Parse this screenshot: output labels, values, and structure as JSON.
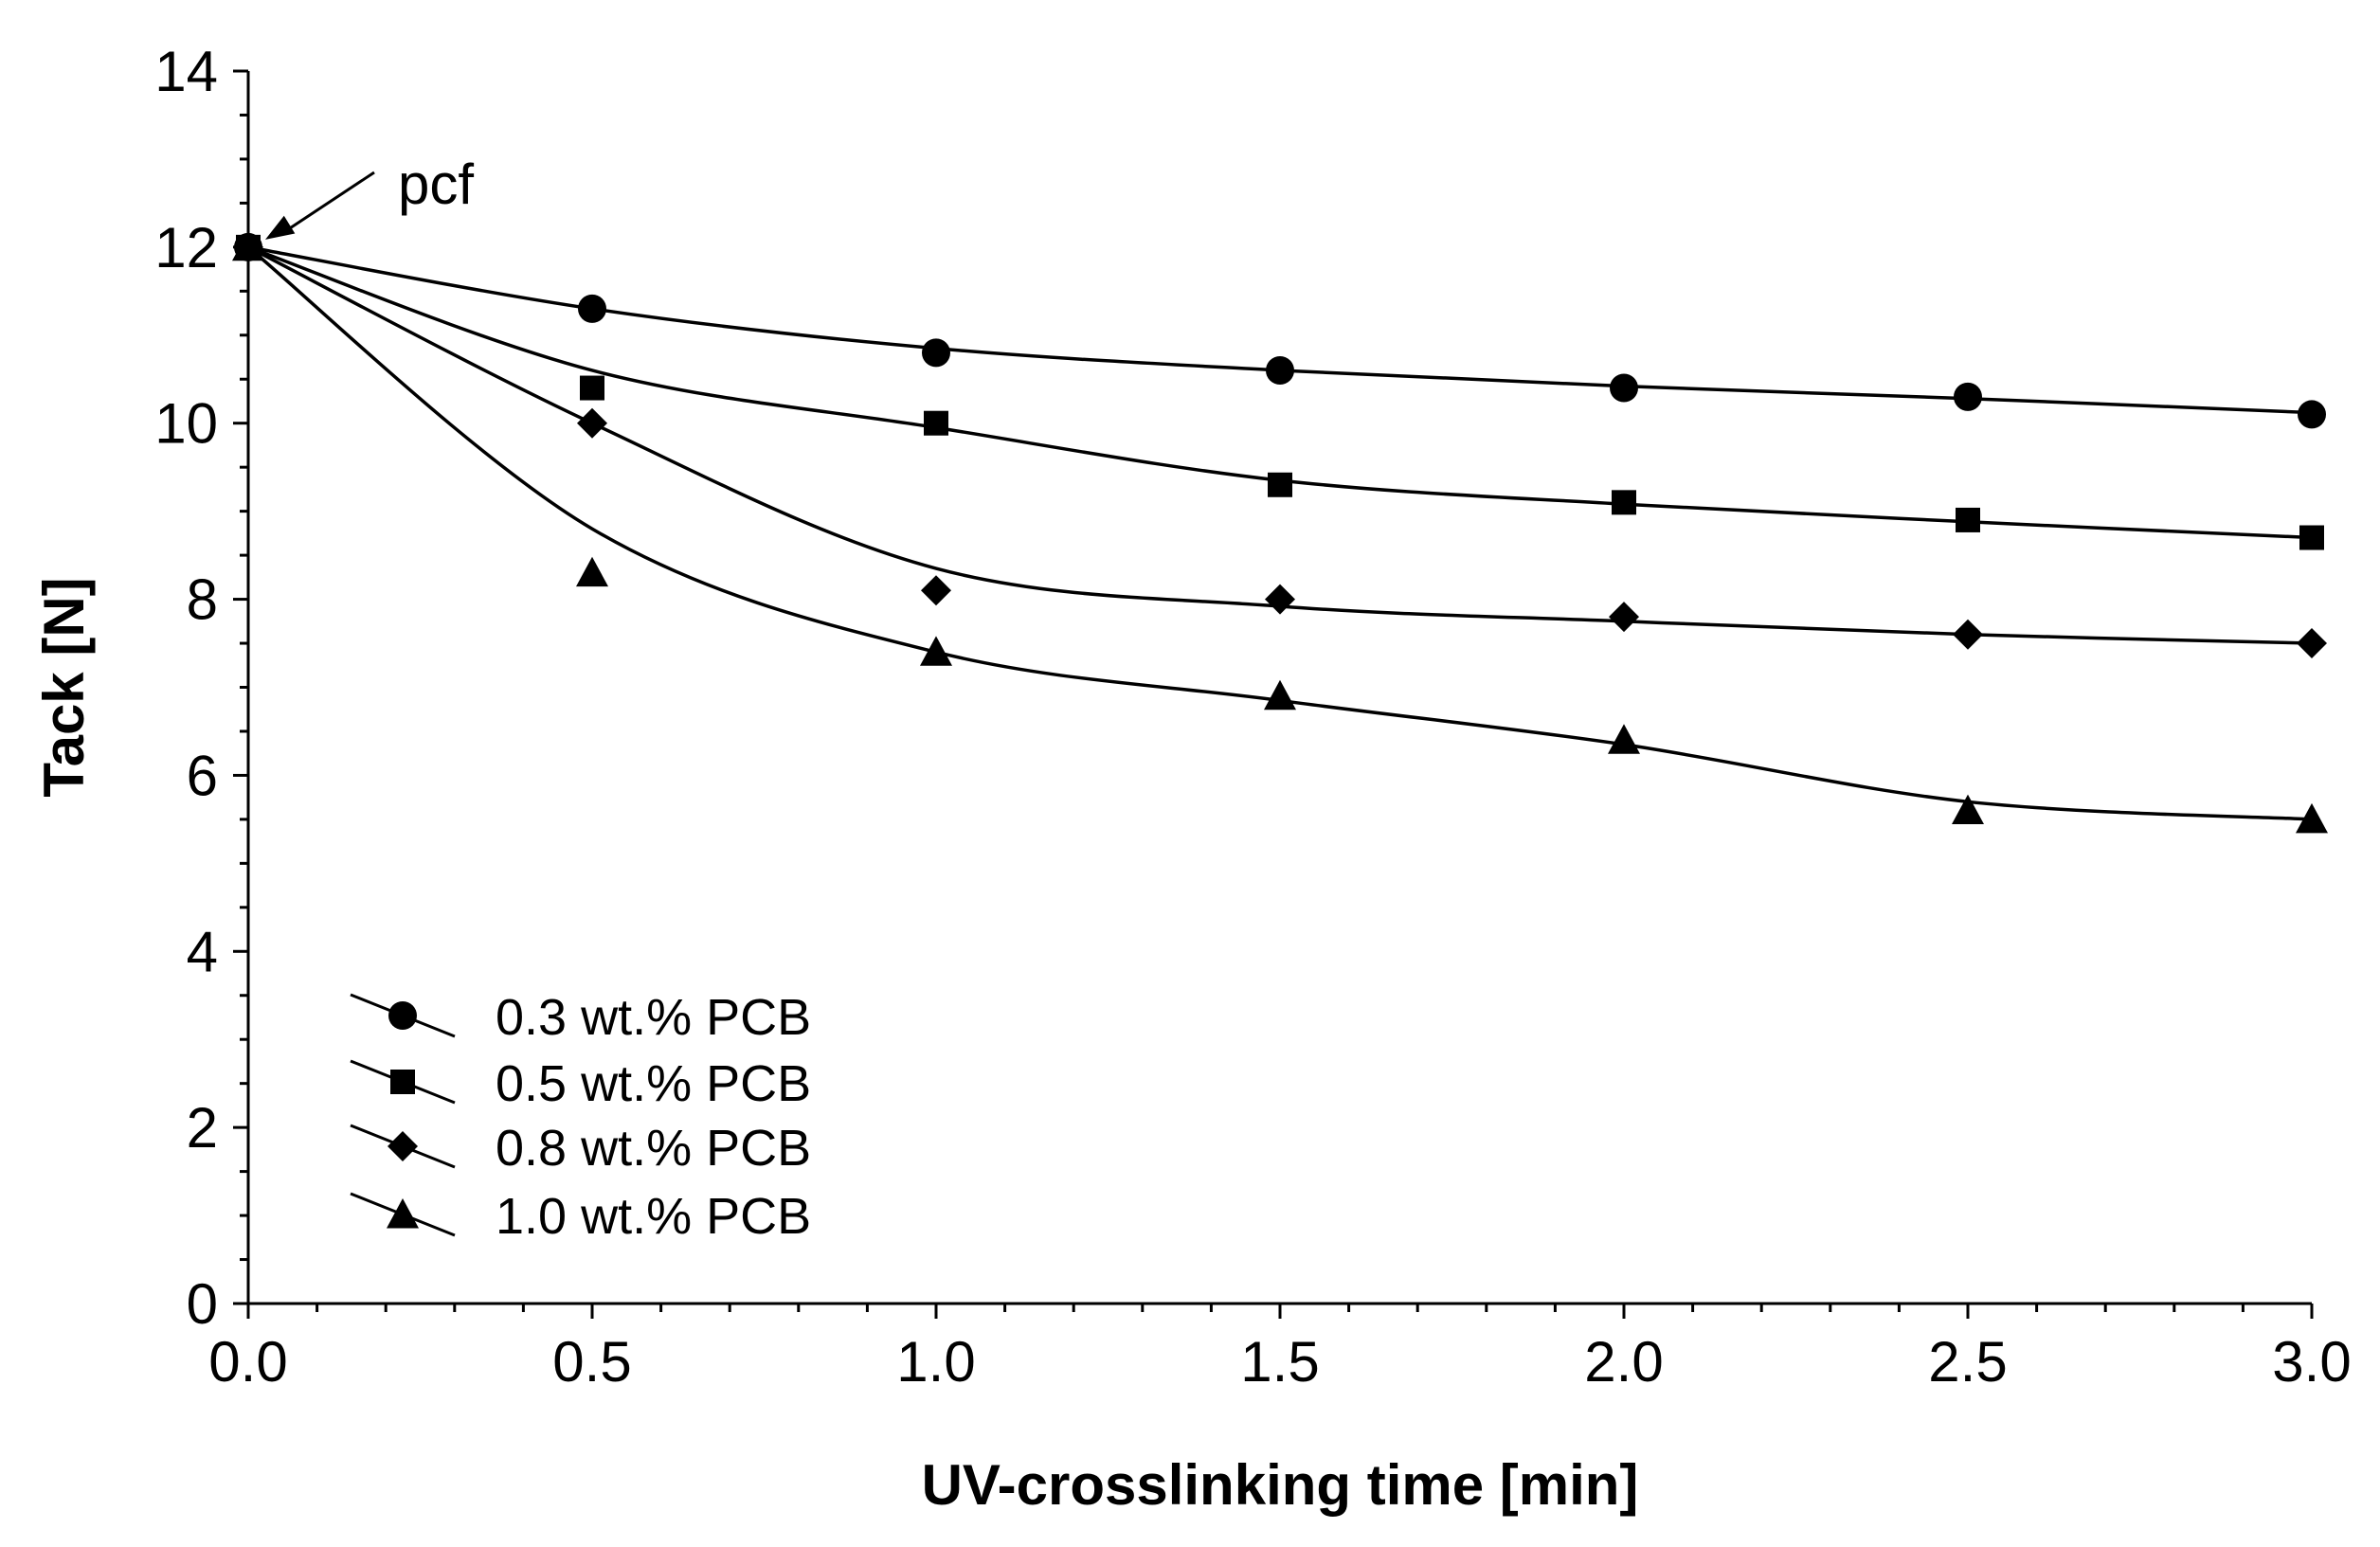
{
  "chart_data": {
    "type": "line",
    "title": "",
    "xlabel": "UV-crosslinking time [min]",
    "ylabel": "Tack [N]",
    "xlim": [
      0,
      3
    ],
    "ylim": [
      0,
      14
    ],
    "x_ticks": [
      "0.0",
      "0.5",
      "1.0",
      "1.5",
      "2.0",
      "2.5",
      "3.0"
    ],
    "y_ticks": [
      "0",
      "2",
      "4",
      "6",
      "8",
      "10",
      "12",
      "14"
    ],
    "grid": false,
    "legend_position": "bottom-left",
    "annotation": {
      "text": "pcf",
      "x": 0,
      "y": 12
    },
    "x": [
      0,
      0.5,
      1.0,
      1.5,
      2.0,
      2.5,
      3.0
    ],
    "series": [
      {
        "name": "0.3 wt.% PCB",
        "marker": "circle",
        "values": [
          12.0,
          11.3,
          10.8,
          10.6,
          10.4,
          10.3,
          10.1
        ],
        "fit": [
          12.0,
          11.3,
          10.85,
          10.6,
          10.42,
          10.28,
          10.12
        ]
      },
      {
        "name": "0.5 wt.% PCB",
        "marker": "square",
        "values": [
          12.0,
          10.4,
          10.0,
          9.3,
          9.1,
          8.9,
          8.7
        ],
        "fit": [
          12.0,
          10.6,
          9.95,
          9.35,
          9.08,
          8.88,
          8.7
        ]
      },
      {
        "name": "0.8 wt.% PCB",
        "marker": "diamond",
        "values": [
          12.0,
          10.0,
          8.1,
          8.0,
          7.8,
          7.6,
          7.5
        ],
        "fit": [
          12.0,
          10.0,
          8.35,
          7.92,
          7.75,
          7.6,
          7.5
        ]
      },
      {
        "name": "1.0 wt.% PCB",
        "marker": "triangle",
        "values": [
          12.0,
          8.3,
          7.4,
          6.9,
          6.4,
          5.6,
          5.5
        ],
        "fit": [
          12.0,
          8.8,
          7.4,
          6.85,
          6.35,
          5.7,
          5.5
        ]
      }
    ]
  }
}
